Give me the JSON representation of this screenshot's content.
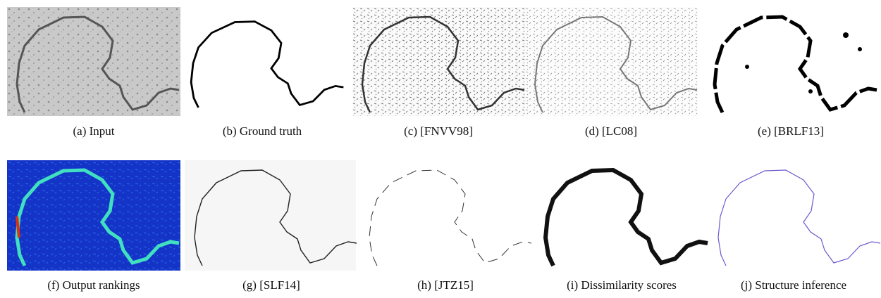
{
  "captions": [
    "(a) Input",
    "(b) Ground truth",
    "(c) [FNVV98]",
    "(d) [LC08]",
    "(e) [BRLF13]",
    "(f) Output rankings",
    "(g) [SLF14]",
    "(h) [JTZ15]",
    "(i) Dissimilarity scores",
    "(j) Structure inference"
  ]
}
